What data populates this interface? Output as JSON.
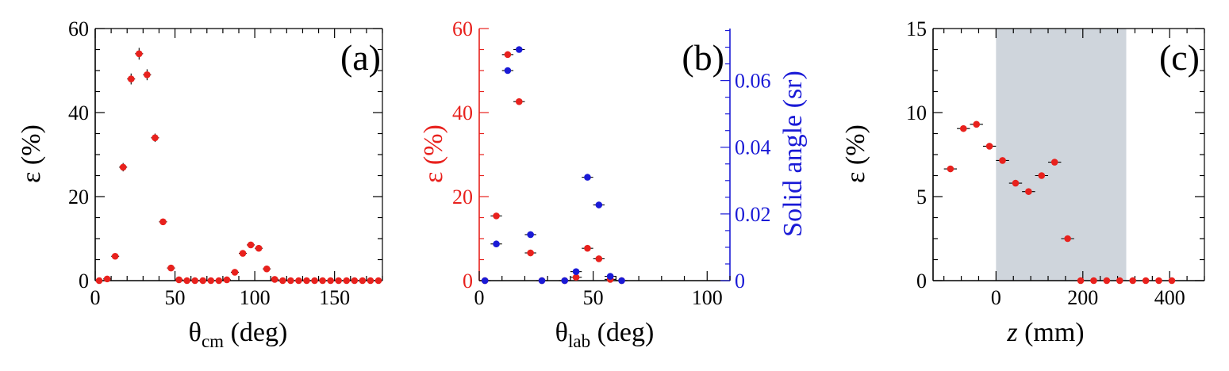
{
  "colors": {
    "red": "#e8211d",
    "blue": "#1a1ad6",
    "shade": "#cfd5dc",
    "axis": "#000000"
  },
  "chart_data": [
    {
      "type": "scatter",
      "panel_label": "(a)",
      "xlabel_main": "θ",
      "xlabel_sub": "cm",
      "xlabel_unit": " (deg)",
      "ylabel": "ε (%)",
      "xlim": [
        0,
        180
      ],
      "ylim": [
        0,
        60
      ],
      "xticks": [
        "0",
        "50",
        "100",
        "150"
      ],
      "yticks": [
        "0",
        "20",
        "40",
        "60"
      ],
      "grid": false,
      "series": [
        {
          "color": "red",
          "x": [
            2.5,
            7.5,
            12.5,
            17.5,
            22.5,
            27.5,
            32.5,
            37.5,
            42.5,
            47.5,
            52.5,
            57.5,
            62.5,
            67.5,
            72.5,
            77.5,
            82.5,
            87.5,
            92.5,
            97.5,
            102.5,
            107.5,
            112.5,
            117.5,
            122.5,
            127.5,
            132.5,
            137.5,
            142.5,
            147.5,
            152.5,
            157.5,
            162.5,
            167.5,
            172.5,
            177.5
          ],
          "y": [
            0,
            0.4,
            5.8,
            27,
            48,
            54,
            49,
            34,
            14,
            3,
            0.2,
            0,
            0,
            0,
            0,
            0,
            0.2,
            2,
            6.5,
            8.5,
            7.7,
            2.8,
            0.3,
            0,
            0,
            0,
            0,
            0,
            0,
            0,
            0,
            0,
            0,
            0,
            0,
            0
          ],
          "yerr": [
            0,
            0.2,
            0.4,
            1.0,
            1.3,
            1.4,
            1.3,
            1.0,
            0.6,
            0.3,
            0.1,
            0,
            0,
            0,
            0,
            0,
            0.1,
            0.3,
            0.5,
            0.5,
            0.5,
            0.3,
            0.1,
            0,
            0,
            0,
            0,
            0,
            0,
            0,
            0,
            0,
            0,
            0,
            0,
            0
          ],
          "xerr": 2.5
        }
      ]
    },
    {
      "type": "scatter",
      "panel_label": "(b)",
      "xlabel_main": "θ",
      "xlabel_sub": "lab",
      "xlabel_unit": " (deg)",
      "ylabel": "ε (%)",
      "y2label": "Solid angle (sr)",
      "xlim": [
        0,
        110
      ],
      "ylim": [
        0,
        60
      ],
      "y2lim": [
        0,
        0.0756
      ],
      "xticks": [
        "0",
        "50",
        "100"
      ],
      "yticks": [
        "0",
        "20",
        "40",
        "60"
      ],
      "y2ticks": [
        "0",
        "0.02",
        "0.04",
        "0.06"
      ],
      "grid": false,
      "series": [
        {
          "color": "red",
          "axis": "left",
          "x": [
            2.5,
            7.5,
            12.5,
            17.5,
            22.5,
            27.5,
            37.5,
            42.5,
            47.5,
            52.5,
            57.5,
            62.5
          ],
          "y": [
            0,
            15.4,
            53.8,
            42.6,
            6.6,
            0,
            0,
            0.8,
            7.7,
            5.2,
            0.3,
            0
          ],
          "xerr": 2.5
        },
        {
          "color": "blue",
          "axis": "right",
          "x": [
            2.5,
            12.5,
            17.5,
            22.5,
            27.5,
            37.5,
            42.5,
            47.5,
            52.5,
            57.5,
            62.5
          ],
          "y": [
            0,
            0.063,
            0.0693,
            0.0138,
            0,
            0,
            0.0027,
            0.031,
            0.0227,
            0.0013,
            0
          ],
          "xerr": 2.5
        },
        {
          "color": "blue",
          "axis": "right",
          "x": [
            7.5
          ],
          "y": [
            0.011
          ],
          "xerr": 2.5
        }
      ]
    },
    {
      "type": "scatter",
      "panel_label": "(c)",
      "xlabel_main": "z",
      "xlabel_sub": "",
      "xlabel_unit": " (mm)",
      "ylabel": "ε (%)",
      "xlim": [
        -145,
        480
      ],
      "ylim": [
        0,
        15
      ],
      "xticks": [
        "0",
        "200",
        "400"
      ],
      "yticks": [
        "0",
        "5",
        "10",
        "15"
      ],
      "shaded_x": [
        0,
        300
      ],
      "grid": false,
      "series": [
        {
          "color": "red",
          "x": [
            -105,
            -75,
            -45,
            -15,
            15,
            45,
            75,
            105,
            135,
            165,
            195,
            225,
            255,
            285,
            315,
            345,
            375,
            405
          ],
          "y": [
            6.65,
            9.05,
            9.3,
            8.0,
            7.15,
            5.8,
            5.3,
            6.25,
            7.05,
            2.5,
            0,
            0,
            0,
            0,
            0,
            0,
            0,
            0
          ],
          "xerr": 15
        }
      ]
    }
  ]
}
